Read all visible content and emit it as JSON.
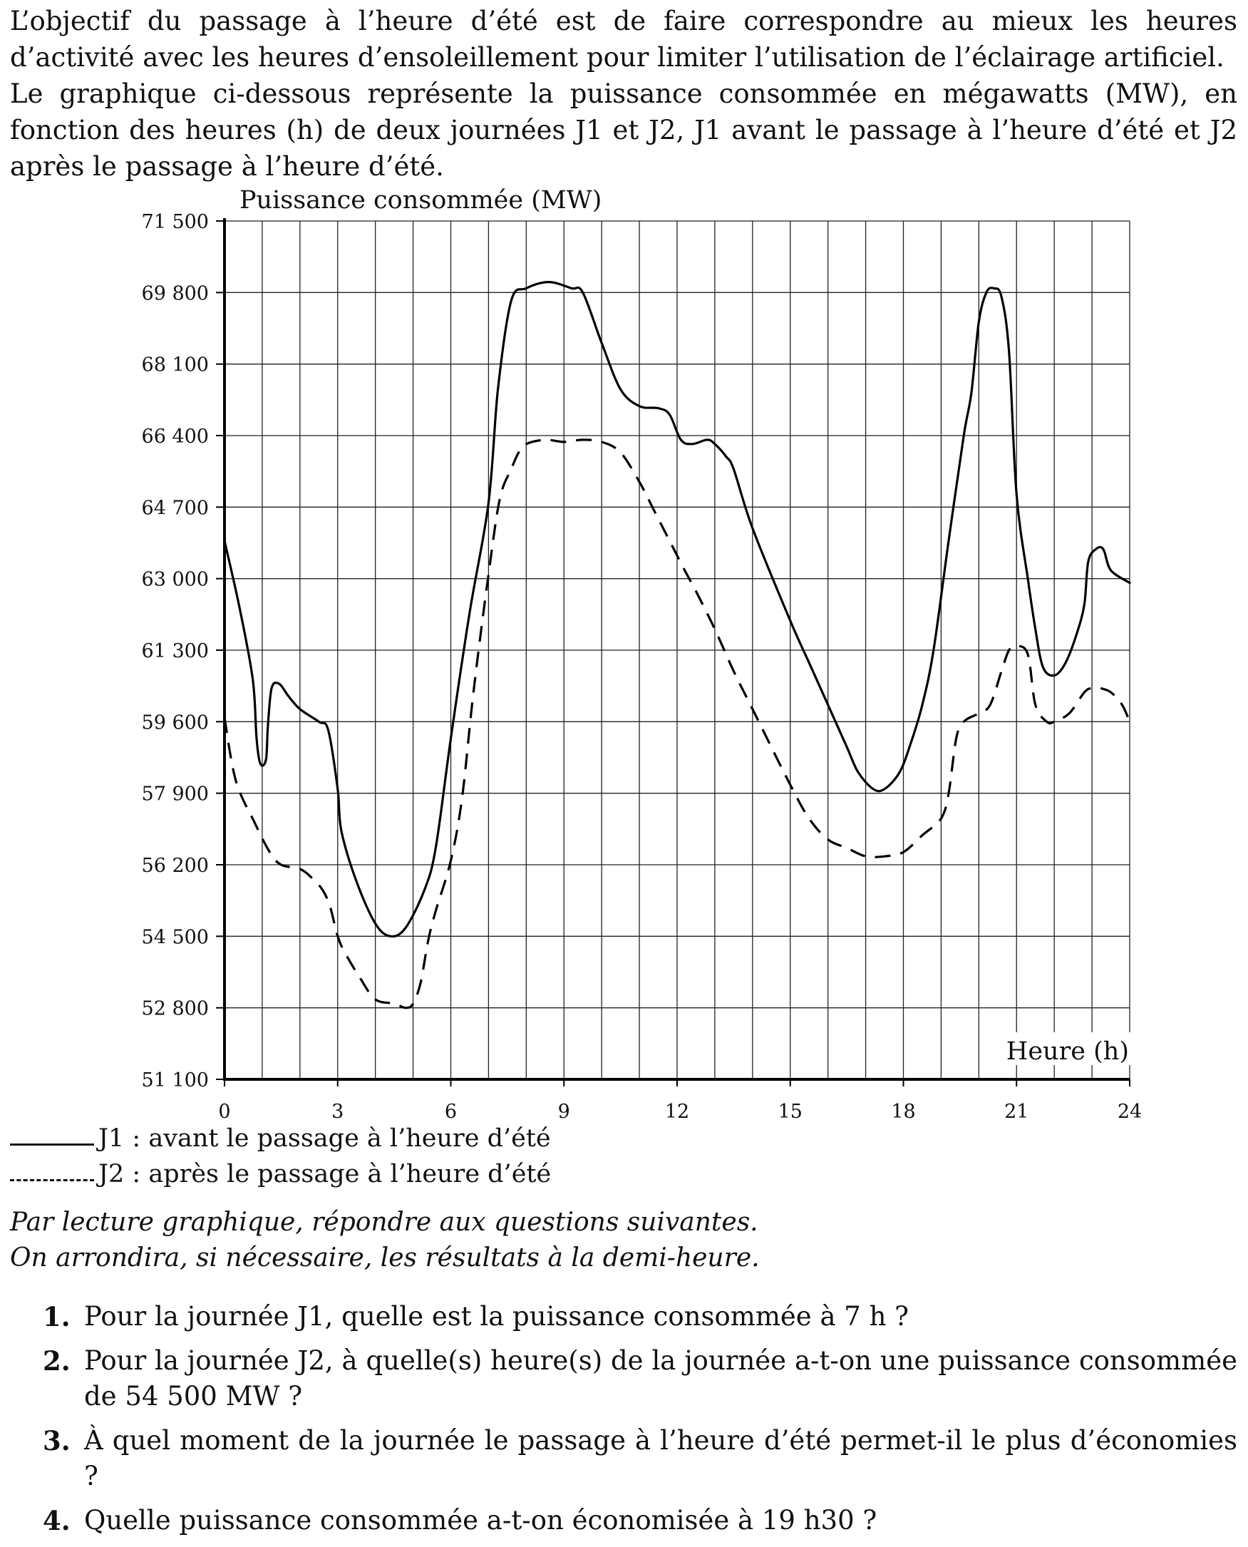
{
  "intro": {
    "p1": "L’objectif du passage à l’heure d’été est de faire correspondre au mieux les heures d’activité avec les heures d’ensoleillement pour limiter l’utilisation de l’éclairage artificiel.",
    "p2": "Le graphique ci-dessous représente la puissance consommée en mégawatts (MW), en fonction des heures (h) de deux journées J1 et J2, J1 avant le passage à l’heure d’été et J2 après le passage à l’heure d’été."
  },
  "legend": {
    "j1": "J1 : avant le passage à l’heure d’été",
    "j2": "J2 : après le passage à l’heure d’été"
  },
  "instructions": {
    "line1": "Par lecture graphique, répondre aux questions suivantes.",
    "line2": "On arrondira, si nécessaire, les résultats à la demi-heure."
  },
  "questions": [
    {
      "num": "1.",
      "text": "Pour la journée J1, quelle est la puissance consommée à 7 h ?"
    },
    {
      "num": "2.",
      "text": "Pour la journée J2, à quelle(s) heure(s) de la journée a-t-on une puissance consommée de 54 500 MW ?"
    },
    {
      "num": "3.",
      "text": "À quel moment de la journée le passage à l’heure d’été permet-il le plus d’économies ?"
    },
    {
      "num": "4.",
      "text": "Quelle puissance consommée a-t-on économisée à 19 h30 ?"
    }
  ],
  "chart_data": {
    "type": "line",
    "ylabel": "Puissance consommée (MW)",
    "xlabel": "Heure (h)",
    "xlim": [
      0,
      24
    ],
    "ylim": [
      51100,
      71500
    ],
    "x_ticks": [
      0,
      3,
      6,
      9,
      12,
      15,
      18,
      21,
      24
    ],
    "x_tick_labels": [
      "0",
      "3",
      "6",
      "9",
      "12",
      "15",
      "18",
      "21",
      "24"
    ],
    "x_grid_step": 1,
    "y_ticks": [
      51100,
      52800,
      54500,
      56200,
      57900,
      59600,
      61300,
      63000,
      64700,
      66400,
      68100,
      69800,
      71500
    ],
    "y_tick_labels": [
      "51 100",
      "52 800",
      "54 500",
      "56 200",
      "57 900",
      "59 600",
      "61 300",
      "63 000",
      "64 700",
      "66 400",
      "68 100",
      "69 800",
      "71 500"
    ],
    "grid": true,
    "series": [
      {
        "name": "J1",
        "style": "solid",
        "x": [
          0,
          0.4,
          0.75,
          0.85,
          0.95,
          1.1,
          1.15,
          1.25,
          1.45,
          1.7,
          2.0,
          2.5,
          2.75,
          3.0,
          3.1,
          3.5,
          4.0,
          4.4,
          4.8,
          5.3,
          5.6,
          6.0,
          6.5,
          7.0,
          7.25,
          7.6,
          8.0,
          8.6,
          9.2,
          9.5,
          10.0,
          10.5,
          11.0,
          11.5,
          11.8,
          12.1,
          12.4,
          12.8,
          13.0,
          13.3,
          13.5,
          14.0,
          15.0,
          15.5,
          16.0,
          16.5,
          16.8,
          17.2,
          17.5,
          17.9,
          18.2,
          18.5,
          18.8,
          19.2,
          19.6,
          19.8,
          20.0,
          20.2,
          20.4,
          20.6,
          20.8,
          21.0,
          21.3,
          21.5,
          21.7,
          22.0,
          22.3,
          22.6,
          22.8,
          22.9,
          23.1,
          23.3,
          23.5,
          24.0
        ],
        "values": [
          63900,
          62300,
          60600,
          59200,
          58600,
          58700,
          59500,
          60400,
          60500,
          60200,
          59900,
          59600,
          59400,
          58000,
          57000,
          55800,
          54800,
          54500,
          54700,
          55600,
          56600,
          59200,
          62200,
          64800,
          67500,
          69600,
          69900,
          70050,
          69900,
          69800,
          68600,
          67500,
          67100,
          67050,
          66900,
          66300,
          66200,
          66300,
          66200,
          65900,
          65600,
          64200,
          62000,
          61000,
          60000,
          59000,
          58400,
          58000,
          58000,
          58400,
          59100,
          60000,
          61300,
          63900,
          66400,
          67400,
          69100,
          69800,
          69900,
          69700,
          68400,
          65000,
          63000,
          61800,
          60900,
          60700,
          61000,
          61700,
          62400,
          63400,
          63700,
          63700,
          63200,
          62900
        ]
      },
      {
        "name": "J2",
        "style": "dashed",
        "x": [
          0,
          0.3,
          0.8,
          1.2,
          1.5,
          2.0,
          2.3,
          2.6,
          2.8,
          3.0,
          3.2,
          3.6,
          4.0,
          4.5,
          4.8,
          5.0,
          5.2,
          5.4,
          5.6,
          6.0,
          6.3,
          6.6,
          7.0,
          7.3,
          7.6,
          7.8,
          8.0,
          8.5,
          9.0,
          9.5,
          10.0,
          10.5,
          11.0,
          11.4,
          11.8,
          12.2,
          12.5,
          13.0,
          13.5,
          14.0,
          15.0,
          15.5,
          16.0,
          16.5,
          17.0,
          17.5,
          18.0,
          18.5,
          19.0,
          19.2,
          19.4,
          19.6,
          20.0,
          20.3,
          20.6,
          20.8,
          21.0,
          21.3,
          21.5,
          21.8,
          22.0,
          22.4,
          22.8,
          23.0,
          23.2,
          23.5,
          23.8,
          24.0
        ],
        "values": [
          59700,
          58200,
          57200,
          56500,
          56200,
          56100,
          55900,
          55600,
          55200,
          54500,
          54100,
          53500,
          53000,
          52900,
          52800,
          52900,
          53400,
          54400,
          55100,
          56300,
          57800,
          60300,
          63100,
          64900,
          65600,
          66000,
          66200,
          66300,
          66250,
          66300,
          66250,
          66000,
          65300,
          64600,
          63900,
          63200,
          62700,
          61800,
          60800,
          59900,
          58100,
          57300,
          56800,
          56600,
          56400,
          56400,
          56500,
          56900,
          57300,
          57900,
          59200,
          59600,
          59800,
          60000,
          60800,
          61300,
          61400,
          61200,
          60000,
          59600,
          59600,
          59800,
          60300,
          60400,
          60400,
          60300,
          60000,
          59600
        ]
      }
    ]
  }
}
